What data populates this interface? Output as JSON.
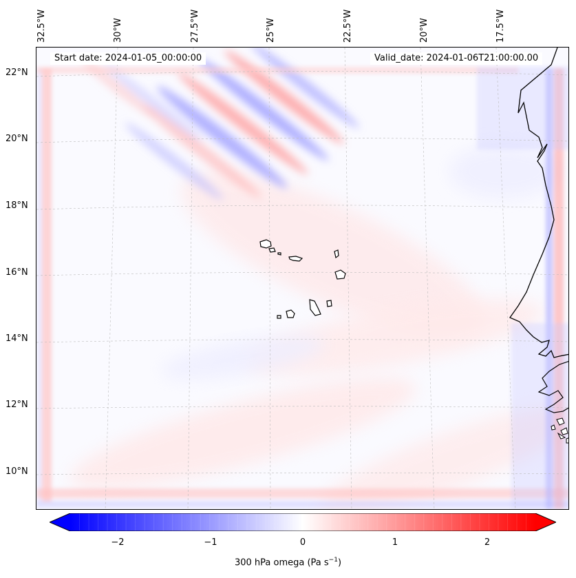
{
  "header": {
    "start_date": "Start date: 2024-01-05_00:00:00",
    "valid_date": "Valid_date: 2024-01-06T21:00:00.00"
  },
  "longitude_labels": [
    "32.5°W",
    "30°W",
    "27.5°W",
    "25°W",
    "22.5°W",
    "20°W",
    "17.5°W"
  ],
  "latitude_labels": [
    "22°N",
    "20°N",
    "18°N",
    "16°N",
    "14°N",
    "12°N",
    "10°N"
  ],
  "colorbar": {
    "label_prefix": "300 hPa omega (Pa s",
    "label_exp": "−1",
    "label_suffix": ")",
    "ticks": [
      "−2",
      "−1",
      "0",
      "1",
      "2"
    ],
    "min": -2.5,
    "max": 2.5,
    "negative_color": "#0000ff",
    "positive_color": "#ff0000",
    "neutral_color": "#ffffff"
  },
  "colors": {
    "coastline": "#000000",
    "gridline": "#bbbbbb",
    "ascent": "#7777ff",
    "descent": "#ff8888"
  }
}
